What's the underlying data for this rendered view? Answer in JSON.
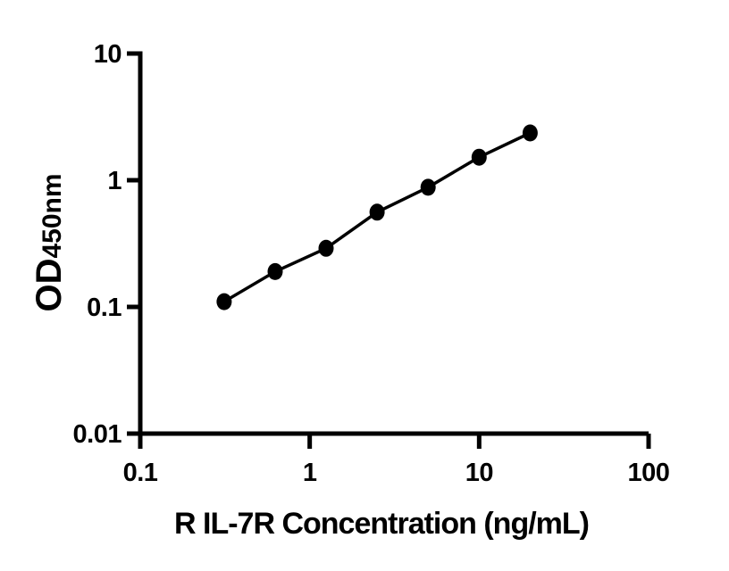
{
  "figure": {
    "background": "#ffffff",
    "foreground": "#000000"
  },
  "chart_data": {
    "type": "line",
    "title": "",
    "xlabel": "R IL-7R Concentration (ng/mL)",
    "ylabel_main": "OD",
    "ylabel_sub": "450nm",
    "x_scale": "log",
    "y_scale": "log",
    "xlim": [
      0.1,
      100
    ],
    "ylim": [
      0.01,
      10
    ],
    "grid": false,
    "legend_position": "none",
    "marker": "filled-circle",
    "line_color": "#000000",
    "marker_color": "#000000",
    "x_ticks": [
      {
        "value": 0.1,
        "label": "0.1"
      },
      {
        "value": 1,
        "label": "1"
      },
      {
        "value": 10,
        "label": "10"
      },
      {
        "value": 100,
        "label": "100"
      }
    ],
    "y_ticks": [
      {
        "value": 10,
        "label": "10"
      },
      {
        "value": 1,
        "label": "1"
      },
      {
        "value": 0.1,
        "label": "0.1"
      },
      {
        "value": 0.01,
        "label": "0.01"
      }
    ],
    "series": [
      {
        "points": [
          {
            "x": 0.3125,
            "y": 0.11
          },
          {
            "x": 0.625,
            "y": 0.19
          },
          {
            "x": 1.25,
            "y": 0.29
          },
          {
            "x": 2.5,
            "y": 0.56
          },
          {
            "x": 5,
            "y": 0.88
          },
          {
            "x": 10,
            "y": 1.52
          },
          {
            "x": 20,
            "y": 2.36
          }
        ]
      }
    ]
  }
}
